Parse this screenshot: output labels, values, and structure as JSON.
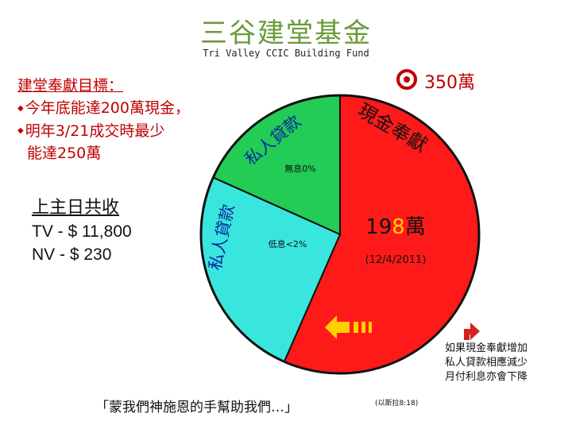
{
  "title": {
    "chinese": "三谷建堂基金",
    "english": "Tri Valley CCIC Building Fund"
  },
  "goals": {
    "heading": "建堂奉獻目標：",
    "line1": "今年底能達200萬現金，",
    "line2": "明年3/21成交時最少",
    "line3": "能達250萬"
  },
  "offering": {
    "heading": "上主日共收",
    "tv": "TV - $ 11,800",
    "nv": "NV - $ 230"
  },
  "target": {
    "icon": "target-icon",
    "amount": "350萬"
  },
  "pie": {
    "cash_label": "現金奉獻",
    "cash_amount_prefix": "19",
    "cash_amount_highlight": "8",
    "cash_amount_suffix": "萬",
    "cash_date": "(12/4/2011)",
    "loan_label_top": "私人貸款",
    "loan_label_left": "私人貸款",
    "interest_free": "無息0%",
    "low_interest": "低息<2%"
  },
  "chart_data": {
    "type": "pie",
    "slices": [
      {
        "name": "現金奉獻",
        "value": 198,
        "color": "#ff1a1a"
      },
      {
        "name": "私人貸款 低息<2%",
        "value": 88,
        "color": "#39e6de"
      },
      {
        "name": "私人貸款 無息0%",
        "value": 64,
        "color": "#22cc55"
      }
    ],
    "total": 350
  },
  "note": {
    "line1": "如果現金奉獻增加",
    "line2": "私人貸款相應減少",
    "line3": "月付利息亦會下降"
  },
  "verse": {
    "text": "「蒙我們神施恩的手幫助我們…」",
    "ref": "(以斯拉8:18)"
  }
}
